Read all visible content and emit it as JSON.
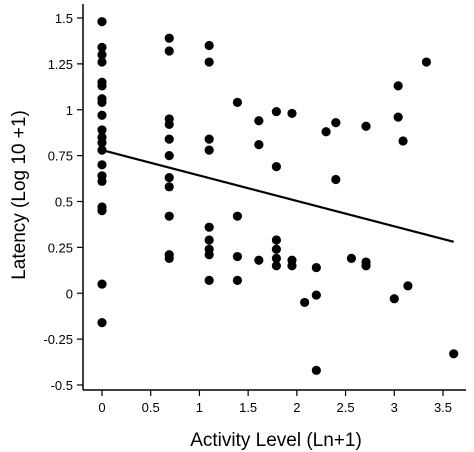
{
  "chart_data": {
    "type": "scatter",
    "title": "",
    "xlabel": "Activity Level (Ln+1)",
    "ylabel": "Latency (Log 10 +1)",
    "xlim": [
      -0.1,
      3.7
    ],
    "ylim": [
      -0.5,
      1.55
    ],
    "xticks": [
      0,
      0.5,
      1,
      1.5,
      2,
      2.5,
      3,
      3.5
    ],
    "xtick_labels": [
      "0",
      "0.5",
      "1",
      "1.5",
      "2",
      "2.5",
      "3",
      "3.5"
    ],
    "yticks": [
      -0.5,
      -0.25,
      0,
      0.25,
      0.5,
      0.75,
      1,
      1.25,
      1.5
    ],
    "ytick_labels": [
      "-0.5",
      "-0.25",
      "0",
      "0.25",
      "0.5",
      "0.75",
      "1",
      "1.25",
      "1.5"
    ],
    "grid": false,
    "legend": "none",
    "marker_color": "#000000",
    "series": [
      {
        "points": [
          [
            0,
            1.48
          ],
          [
            0,
            1.34
          ],
          [
            0,
            1.3
          ],
          [
            0,
            1.26
          ],
          [
            0,
            1.15
          ],
          [
            0,
            1.13
          ],
          [
            0,
            1.06
          ],
          [
            0,
            1.04
          ],
          [
            0,
            0.97
          ],
          [
            0,
            0.89
          ],
          [
            0,
            0.85
          ],
          [
            0,
            0.82
          ],
          [
            0,
            0.78
          ],
          [
            0,
            0.7
          ],
          [
            0,
            0.64
          ],
          [
            0,
            0.61
          ],
          [
            0,
            0.47
          ],
          [
            0,
            0.45
          ],
          [
            0,
            0.05
          ],
          [
            0,
            -0.16
          ],
          [
            0.69,
            1.39
          ],
          [
            0.69,
            1.32
          ],
          [
            0.69,
            0.95
          ],
          [
            0.69,
            0.92
          ],
          [
            0.69,
            0.84
          ],
          [
            0.69,
            0.75
          ],
          [
            0.69,
            0.63
          ],
          [
            0.69,
            0.58
          ],
          [
            0.69,
            0.42
          ],
          [
            0.69,
            0.21
          ],
          [
            0.69,
            0.19
          ],
          [
            1.1,
            1.35
          ],
          [
            1.1,
            1.26
          ],
          [
            1.1,
            0.84
          ],
          [
            1.1,
            0.78
          ],
          [
            1.1,
            0.36
          ],
          [
            1.1,
            0.29
          ],
          [
            1.1,
            0.24
          ],
          [
            1.1,
            0.21
          ],
          [
            1.1,
            0.07
          ],
          [
            1.39,
            1.04
          ],
          [
            1.39,
            0.42
          ],
          [
            1.39,
            0.2
          ],
          [
            1.39,
            0.07
          ],
          [
            1.61,
            0.94
          ],
          [
            1.61,
            0.81
          ],
          [
            1.61,
            0.18
          ],
          [
            1.79,
            0.99
          ],
          [
            1.79,
            0.69
          ],
          [
            1.79,
            0.29
          ],
          [
            1.79,
            0.24
          ],
          [
            1.79,
            0.19
          ],
          [
            1.79,
            0.15
          ],
          [
            1.95,
            0.98
          ],
          [
            1.95,
            0.18
          ],
          [
            1.95,
            0.15
          ],
          [
            2.08,
            -0.05
          ],
          [
            2.2,
            0.14
          ],
          [
            2.2,
            -0.01
          ],
          [
            2.2,
            -0.42
          ],
          [
            2.3,
            0.88
          ],
          [
            2.4,
            0.93
          ],
          [
            2.4,
            0.62
          ],
          [
            2.56,
            0.19
          ],
          [
            2.71,
            0.91
          ],
          [
            2.71,
            0.17
          ],
          [
            2.71,
            0.15
          ],
          [
            3.0,
            -0.03
          ],
          [
            3.04,
            1.13
          ],
          [
            3.04,
            0.96
          ],
          [
            3.09,
            0.83
          ],
          [
            3.14,
            0.04
          ],
          [
            3.33,
            1.26
          ],
          [
            3.61,
            -0.33
          ]
        ]
      }
    ],
    "regression_line": {
      "x": [
        0,
        3.61
      ],
      "y": [
        0.78,
        0.28
      ]
    }
  }
}
